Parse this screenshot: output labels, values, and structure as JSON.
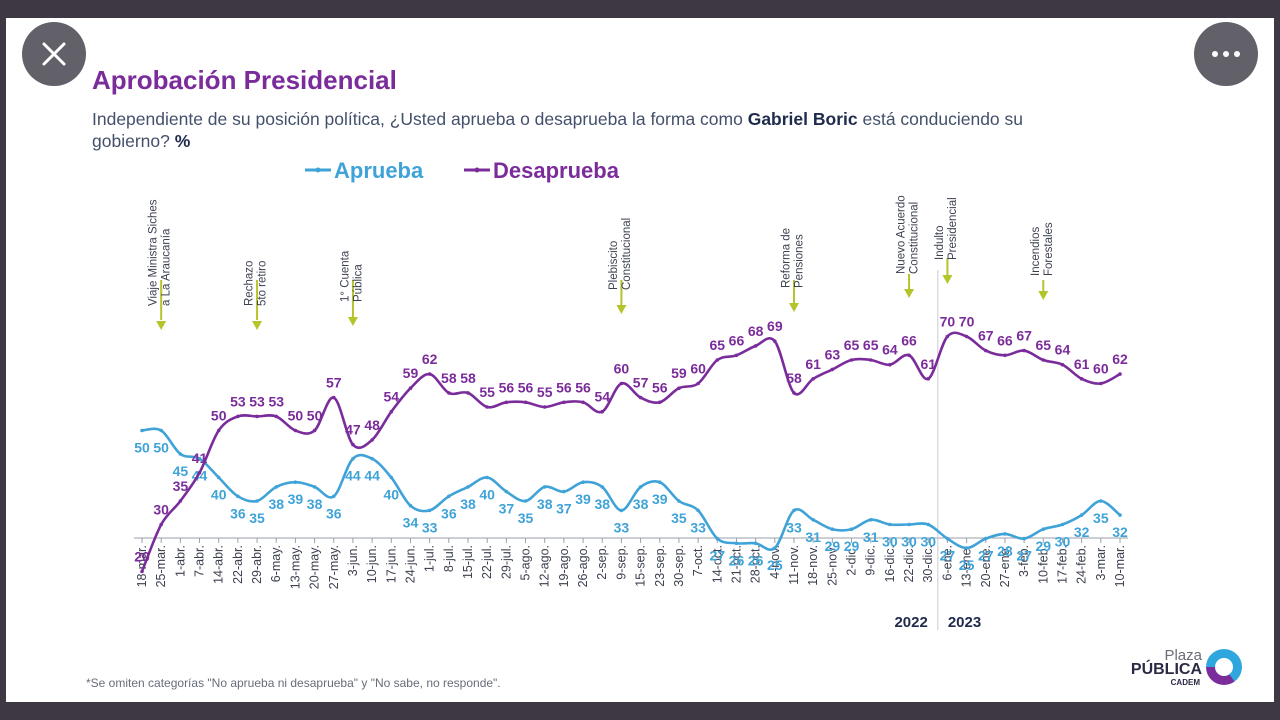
{
  "header": {
    "title": "Aprobación Presidencial",
    "subtitle_part1": "Independiente de su posición política, ¿Usted aprueba o desaprueba la forma como ",
    "subtitle_bold1": "Gabriel Boric",
    "subtitle_part2": " está conduciendo su gobierno? ",
    "subtitle_bold2": "%"
  },
  "footnote": "*Se omiten categorías \"No aprueba ni desaprueba\" y \"No sabe, no responde\".",
  "logo": {
    "line1": "Plaza",
    "line2": "PÚBLICA",
    "line3": "CADEM"
  },
  "controls": {
    "close_icon": "close-icon",
    "more_icon": "more-dots-icon"
  },
  "colors": {
    "aprueba": "#3fa3d8",
    "desaprueba": "#7b2c9b",
    "title": "#7b2c9b",
    "event": "#b5c42a"
  },
  "chart_data": {
    "type": "line",
    "x": [
      "18-mar.",
      "25-mar.",
      "1-abr.",
      "7-abr.",
      "14-abr.",
      "22-abr.",
      "29-abr.",
      "6-may.",
      "13-may.",
      "20-may.",
      "27-may.",
      "3-jun.",
      "10-jun.",
      "17-jun.",
      "24-jun.",
      "1-jul.",
      "8-jul.",
      "15-jul.",
      "22-jul.",
      "29-jul.",
      "5-ago.",
      "12-ago.",
      "19-ago.",
      "26-ago.",
      "2-sep.",
      "9-sep.",
      "15-sep.",
      "23-sep.",
      "30-sep.",
      "7-oct.",
      "14-oct.",
      "21-oct.",
      "28-oct.",
      "4-nov.",
      "11-nov.",
      "18-nov.",
      "25-nov.",
      "2-dic.",
      "9-dic.",
      "16-dic.",
      "22-dic.",
      "30-dic.",
      "6-ene.",
      "13-ene.",
      "20-ene.",
      "27-ene.",
      "3-feb.",
      "10-feb.",
      "17-feb.",
      "24-feb.",
      "3-mar.",
      "10-mar."
    ],
    "series": [
      {
        "name": "Aprueba",
        "values": [
          50,
          50,
          45,
          44,
          40,
          36,
          35,
          38,
          39,
          38,
          36,
          44,
          44,
          40,
          34,
          33,
          36,
          38,
          40,
          37,
          35,
          38,
          37,
          39,
          38,
          33,
          38,
          39,
          35,
          33,
          27,
          26,
          26,
          25,
          33,
          31,
          29,
          29,
          31,
          30,
          30,
          30,
          27,
          25,
          27,
          28,
          27,
          29,
          30,
          32,
          35,
          32
        ]
      },
      {
        "name": "Desaprueba",
        "values": [
          20,
          30,
          35,
          41,
          50,
          53,
          53,
          53,
          50,
          50,
          57,
          47,
          48,
          54,
          59,
          62,
          58,
          58,
          55,
          56,
          56,
          55,
          56,
          56,
          54,
          60,
          57,
          56,
          59,
          60,
          65,
          66,
          68,
          69,
          58,
          61,
          63,
          65,
          65,
          64,
          66,
          61,
          70,
          70,
          67,
          66,
          67,
          65,
          64,
          61,
          60,
          62
        ]
      }
    ],
    "events": [
      {
        "at": "25-mar.",
        "label_lines": [
          "Viaje Ministra Siches",
          "a La Araucanía"
        ]
      },
      {
        "at": "29-abr.",
        "label_lines": [
          "Rechazo",
          "5to retiro"
        ]
      },
      {
        "at": "3-jun.",
        "label_lines": [
          "1° Cuenta",
          "Pública"
        ]
      },
      {
        "at": "9-sep.",
        "label_lines": [
          "Plebiscito",
          "Constitucional"
        ]
      },
      {
        "at": "11-nov.",
        "label_lines": [
          "Reforma de",
          "Pensiones"
        ]
      },
      {
        "at": "22-dic.",
        "label_lines": [
          "Nuevo Acuerdo",
          "Constitucional"
        ]
      },
      {
        "at": "6-ene.",
        "label_lines": [
          "Indulto",
          "Presidencial"
        ]
      },
      {
        "at": "10-feb.",
        "label_lines": [
          "Incendios",
          "Forestales"
        ]
      }
    ],
    "year_labels": [
      "2022",
      "2023"
    ],
    "year_divider_between": [
      "30-dic.",
      "6-ene."
    ],
    "legend_placement": "top-left",
    "grid": false,
    "ylim": [
      0,
      100
    ]
  }
}
